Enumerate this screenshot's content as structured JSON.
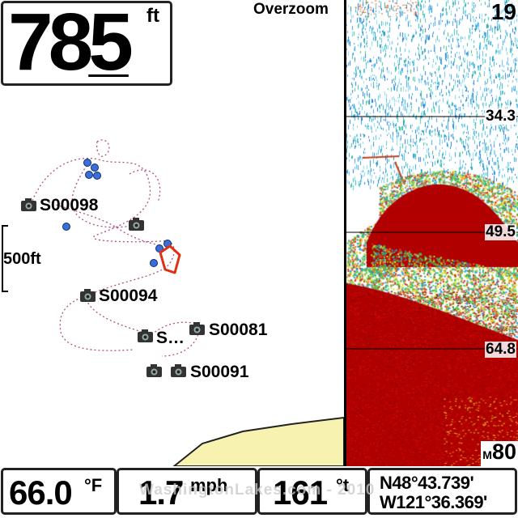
{
  "depth": {
    "value": "785",
    "unit": "ft"
  },
  "map": {
    "mode_label": "Overzoom",
    "scale_label": "500ft",
    "waypoints": [
      {
        "label": "S00098"
      },
      {
        "label": "S00094"
      },
      {
        "label": "S…"
      },
      {
        "label": "S00081"
      },
      {
        "label": "S00091"
      }
    ],
    "colors": {
      "track": "#b05080",
      "waypoint_dot": "#3b6fd6",
      "boat_outline": "#e03010",
      "shore": "#f8f2b0"
    }
  },
  "sonar": {
    "top_value": "19",
    "depth_marks": [
      "34.3",
      "49.5",
      "64.8"
    ],
    "range_prefix": "M",
    "range_value": "80",
    "colors": {
      "bottom": "#b00000",
      "noise": "#3aa0e0"
    }
  },
  "status": {
    "water_temp": {
      "value": "66.0",
      "unit": "°F"
    },
    "speed": {
      "value": "1.7",
      "unit": "mph"
    },
    "heading": {
      "value": "161",
      "unit": "°t"
    },
    "position": {
      "lat": "N48°43.739'",
      "lon": "W121°36.369'"
    }
  },
  "watermark": "WashingtonLakes.com - 2010"
}
